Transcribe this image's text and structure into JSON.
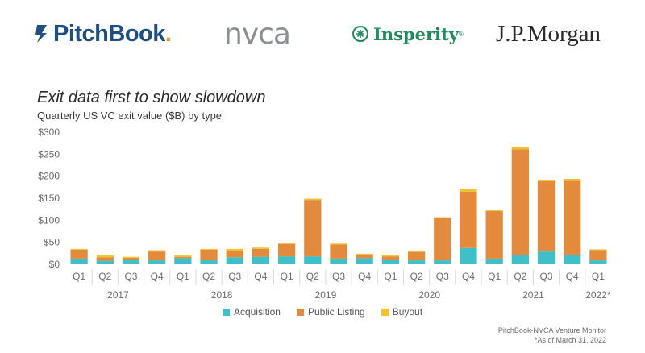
{
  "logos": {
    "pitchbook": "PitchBook",
    "pitchbook_dot": ".",
    "nvca": "nvca",
    "insperity": "Insperity",
    "insperity_mark": "®",
    "jpmorgan": "J.P.Morgan"
  },
  "colors": {
    "acquisition": "#3fbfc8",
    "public_listing": "#e38a3c",
    "buyout": "#f2c12e",
    "pitchbook_blue": "#1f4f82",
    "insperity_green": "#1f8a5a"
  },
  "legend": {
    "acquisition": "Acquisition",
    "public_listing": "Public Listing",
    "buyout": "Buyout"
  },
  "source": {
    "line1": "PitchBook-NVCA Venture Monitor",
    "line2": "*As of March 31, 2022"
  },
  "chart_data": {
    "type": "bar",
    "stacked": true,
    "title": "Exit data first to show slowdown",
    "subtitle": "Quarterly US VC exit value ($B) by type",
    "ylim": [
      0,
      300
    ],
    "yticks": [
      "$0",
      "$50",
      "$100",
      "$150",
      "$200",
      "$250",
      "$300"
    ],
    "ytick_values": [
      0,
      50,
      100,
      150,
      200,
      250,
      300
    ],
    "grid": false,
    "legend_position": "bottom",
    "categories": [
      "Q1",
      "Q2",
      "Q3",
      "Q4",
      "Q1",
      "Q2",
      "Q3",
      "Q4",
      "Q1",
      "Q2",
      "Q3",
      "Q4",
      "Q1",
      "Q2",
      "Q3",
      "Q4",
      "Q1",
      "Q2",
      "Q3",
      "Q4",
      "Q1"
    ],
    "years": [
      {
        "label": "2017",
        "start": 0,
        "end": 3
      },
      {
        "label": "2018",
        "start": 4,
        "end": 7
      },
      {
        "label": "2019",
        "start": 8,
        "end": 11
      },
      {
        "label": "2020",
        "start": 12,
        "end": 15
      },
      {
        "label": "2021",
        "start": 16,
        "end": 19
      },
      {
        "label": "2022*",
        "start": 20,
        "end": 20
      }
    ],
    "series": [
      {
        "name": "Acquisition",
        "key": "acquisition",
        "values": [
          13,
          8,
          11,
          9,
          14,
          10,
          16,
          17,
          18,
          18,
          13,
          14,
          11,
          9,
          9,
          37,
          13,
          22,
          29,
          22,
          9
        ]
      },
      {
        "name": "Public Listing",
        "key": "public_listing",
        "values": [
          20,
          8,
          4,
          20,
          3,
          23,
          14,
          18,
          28,
          128,
          32,
          8,
          7,
          19,
          96,
          128,
          108,
          239,
          160,
          169,
          23
        ]
      },
      {
        "name": "Buyout",
        "key": "buyout",
        "values": [
          2,
          4,
          2,
          3,
          3,
          2,
          5,
          3,
          2,
          3,
          2,
          2,
          2,
          2,
          2,
          6,
          2,
          6,
          3,
          3,
          2
        ]
      }
    ]
  }
}
